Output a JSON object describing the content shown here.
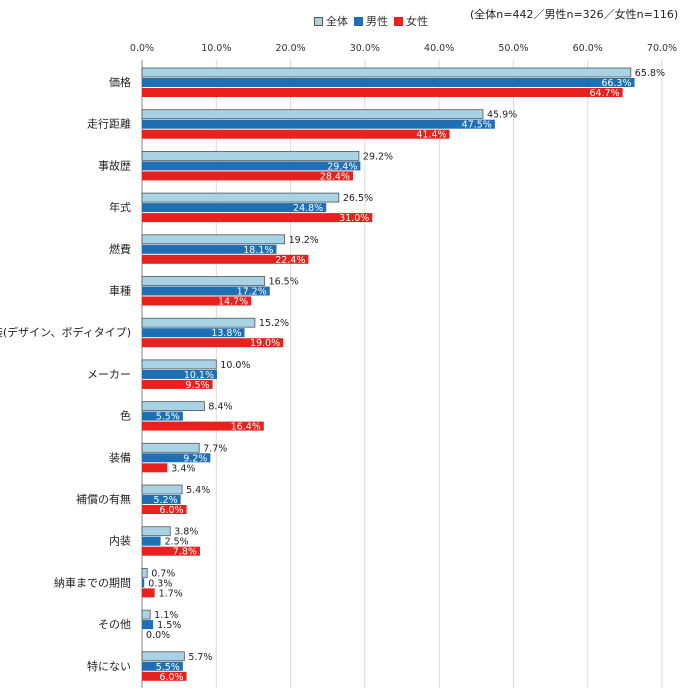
{
  "sample_note": "(全体n=442／男性n=326／女性n=116)",
  "legend": [
    {
      "name": "全体",
      "color": "#a8d3e4"
    },
    {
      "name": "男性",
      "color": "#1e6fb4"
    },
    {
      "name": "女性",
      "color": "#e8211e"
    }
  ],
  "chart_data": {
    "type": "bar",
    "orientation": "horizontal",
    "xlim": [
      0,
      70
    ],
    "tick_labels": [
      "0.0%",
      "10.0%",
      "20.0%",
      "30.0%",
      "40.0%",
      "50.0%",
      "60.0%",
      "70.0%"
    ],
    "grid": true,
    "legend_position": "top-center",
    "categories": [
      "価格",
      "走行距離",
      "事故歴",
      "年式",
      "燃費",
      "車種",
      "外装(デザイン、ボディタイプ)",
      "メーカー",
      "色",
      "装備",
      "補償の有無",
      "内装",
      "納車までの期間",
      "その他",
      "特にない"
    ],
    "series": [
      {
        "name": "全体",
        "color": "#a8d3e4",
        "values": [
          65.8,
          45.9,
          29.2,
          26.5,
          19.2,
          16.5,
          15.2,
          10.0,
          8.4,
          7.7,
          5.4,
          3.8,
          0.7,
          1.1,
          5.7
        ],
        "labels": [
          "65.8%",
          "45.9%",
          "29.2%",
          "26.5%",
          "19.2%",
          "16.5%",
          "15.2%",
          "10.0%",
          "8.4%",
          "7.7%",
          "5.4%",
          "3.8%",
          "0.7%",
          "1.1%",
          "5.7%"
        ]
      },
      {
        "name": "男性",
        "color": "#1e6fb4",
        "values": [
          66.3,
          47.5,
          29.4,
          24.8,
          18.1,
          17.2,
          13.8,
          10.1,
          5.5,
          9.2,
          5.2,
          2.5,
          0.3,
          1.5,
          5.5
        ],
        "labels": [
          "66.3%",
          "47.5%",
          "29.4%",
          "24.8%",
          "18.1%",
          "17.2%",
          "13.8%",
          "10.1%",
          "5.5%",
          "9.2%",
          "5.2%",
          "2.5%",
          "0.3%",
          "1.5%",
          "5.5%"
        ]
      },
      {
        "name": "女性",
        "color": "#e8211e",
        "values": [
          64.7,
          41.4,
          28.4,
          31.0,
          22.4,
          14.7,
          19.0,
          9.5,
          16.4,
          3.4,
          6.0,
          7.8,
          1.7,
          0.0,
          6.0
        ],
        "labels": [
          "64.7%",
          "41.4%",
          "28.4%",
          "31.0%",
          "22.4%",
          "14.7%",
          "19.0%",
          "9.5%",
          "16.4%",
          "3.4%",
          "6.0%",
          "7.8%",
          "1.7%",
          "0.0%",
          "6.0%"
        ]
      }
    ]
  }
}
